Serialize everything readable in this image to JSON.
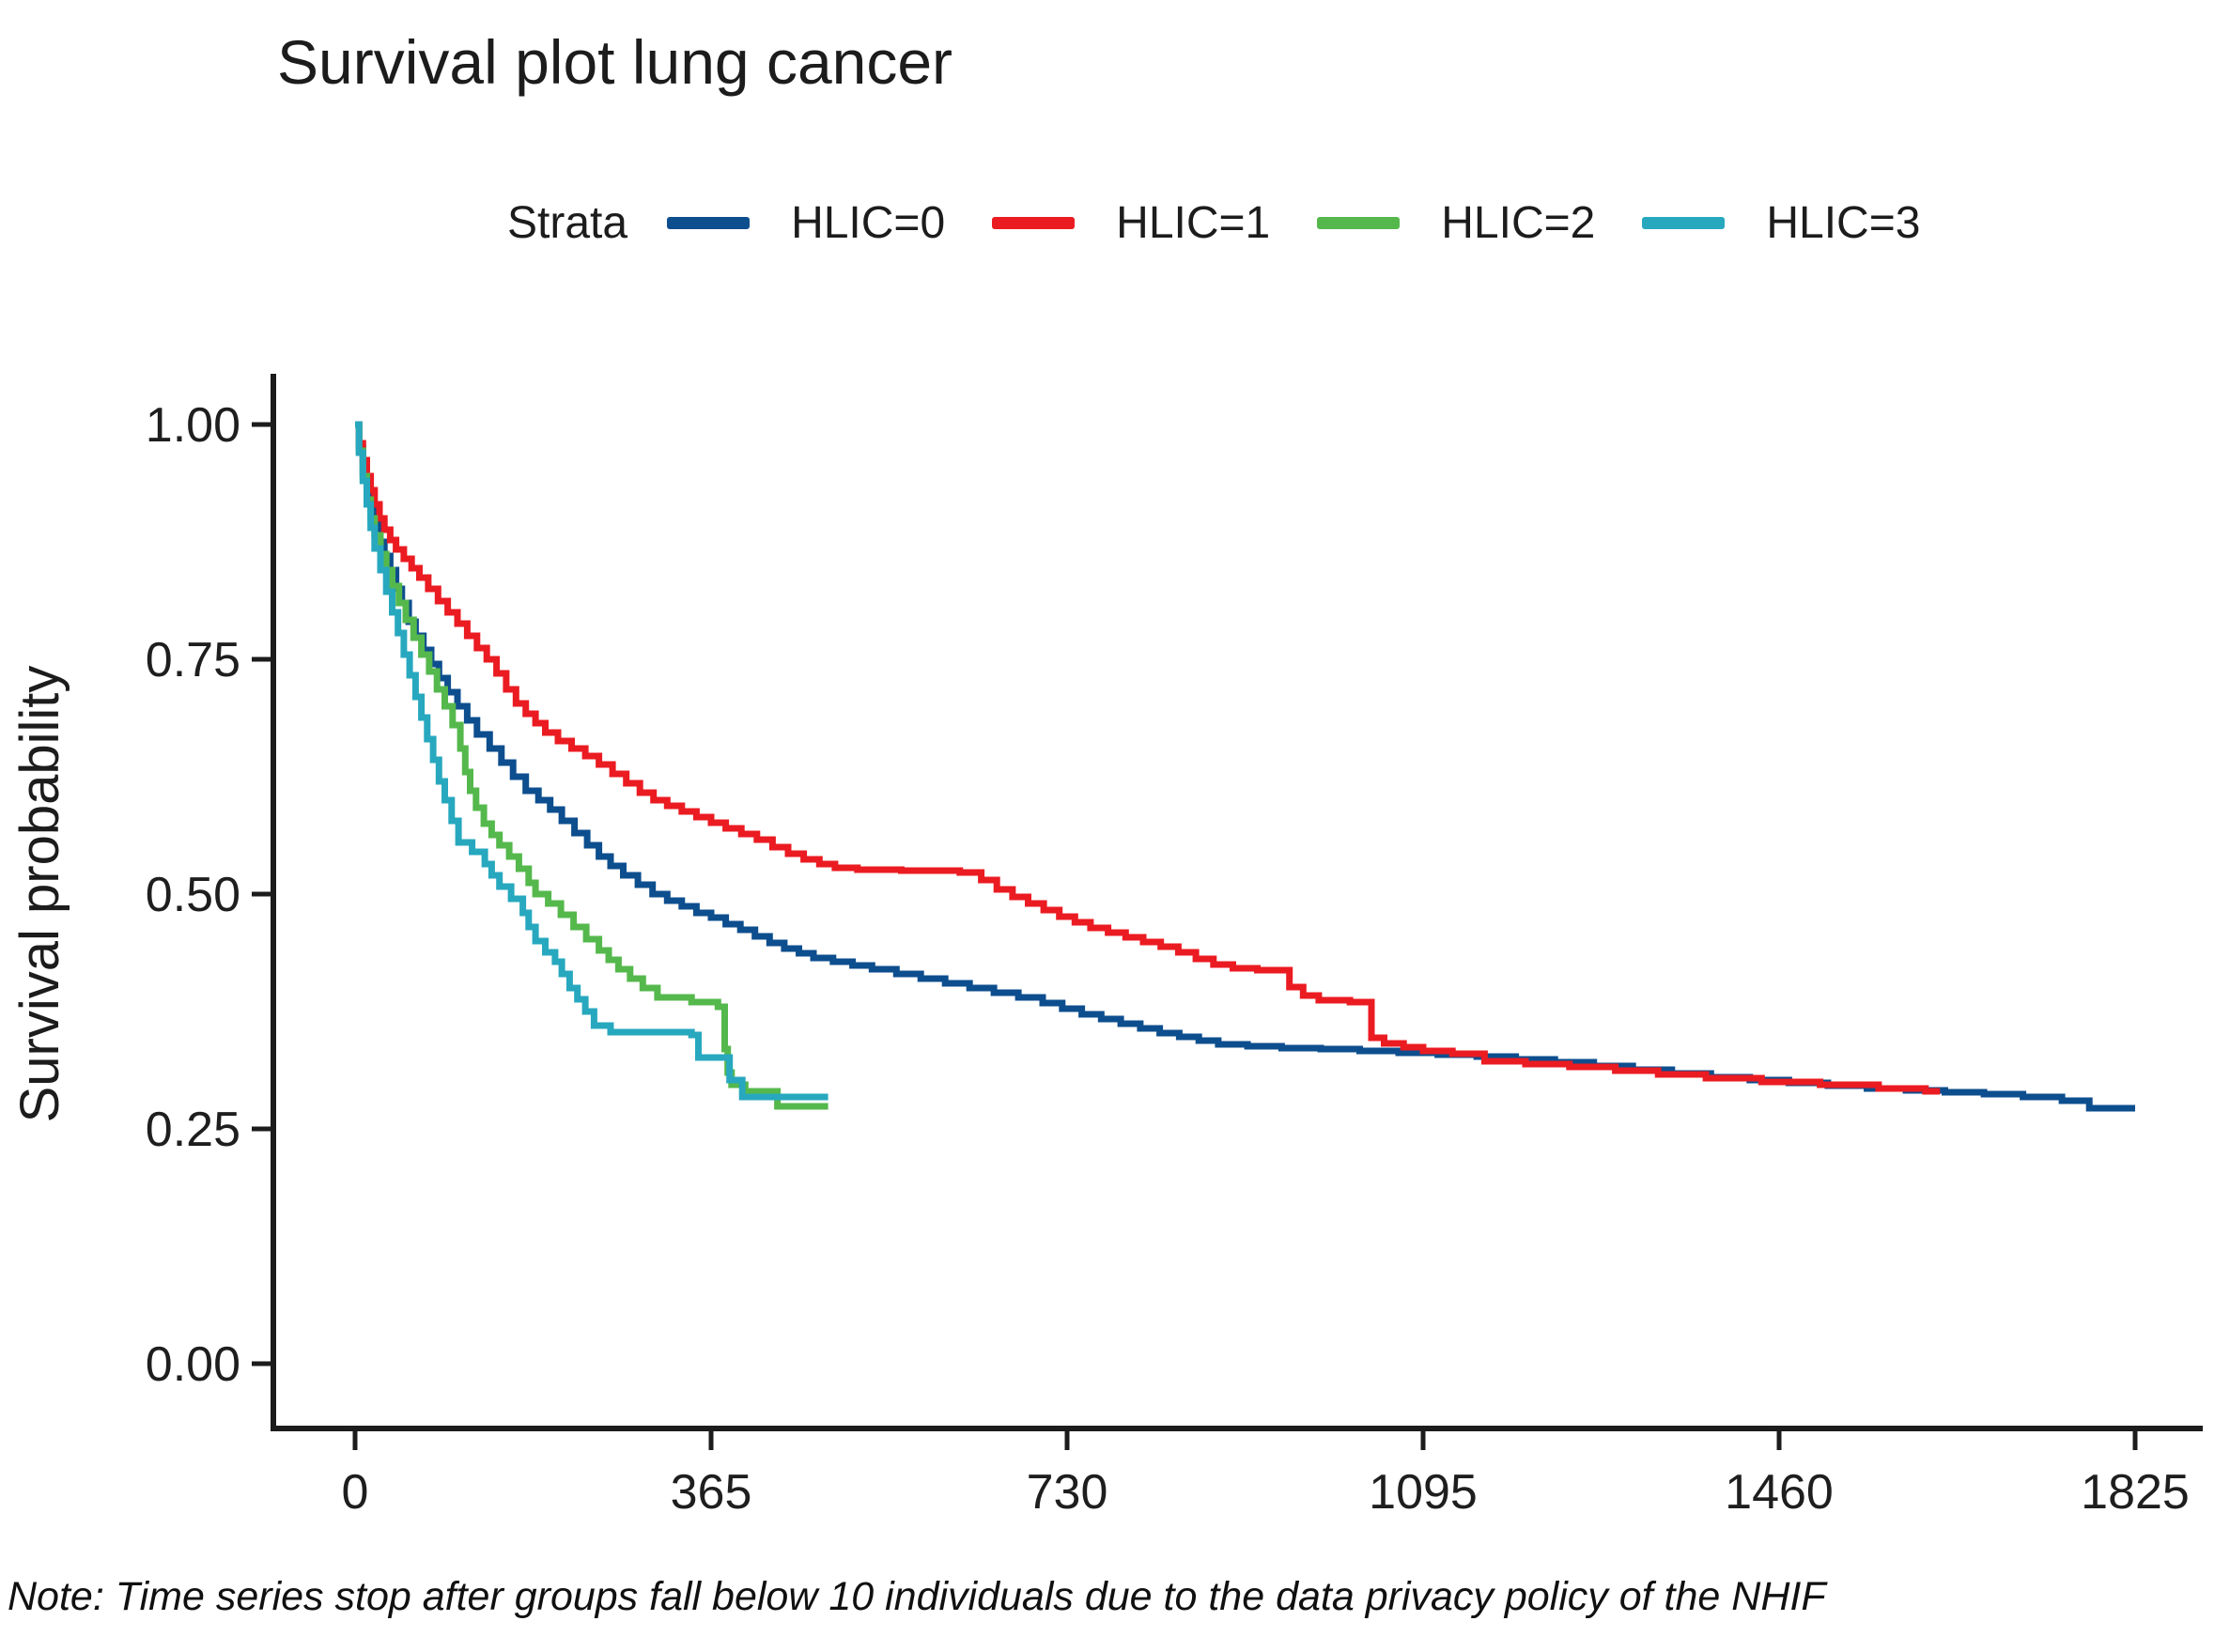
{
  "title": "Survival plot lung cancer",
  "note": "Note: Time series stop after groups fall below 10 individuals due to the data privacy policy of the NHIF",
  "legend": {
    "label": "Strata",
    "entries": [
      {
        "label": "HLIC=0",
        "color": "#0D4E8E"
      },
      {
        "label": "HLIC=1",
        "color": "#EB1B22"
      },
      {
        "label": "HLIC=2",
        "color": "#55B84C"
      },
      {
        "label": "HLIC=3",
        "color": "#27A8BF"
      }
    ]
  },
  "chart_data": {
    "type": "line",
    "subtype": "kaplan-meier-step",
    "title": "Survival plot lung cancer",
    "xlabel": "",
    "ylabel": "Survival probability",
    "xlim": [
      0,
      1825
    ],
    "ylim": [
      0.0,
      1.0
    ],
    "grid": false,
    "legend_position": "top",
    "x_ticks": [
      {
        "value": 0,
        "label": "0"
      },
      {
        "value": 365,
        "label": "365"
      },
      {
        "value": 730,
        "label": "730"
      },
      {
        "value": 1095,
        "label": "1095"
      },
      {
        "value": 1460,
        "label": "1460"
      },
      {
        "value": 1825,
        "label": "1825"
      }
    ],
    "y_ticks": [
      {
        "value": 1.0,
        "label": "1.00"
      },
      {
        "value": 0.75,
        "label": "0.75"
      },
      {
        "value": 0.5,
        "label": "0.50"
      },
      {
        "value": 0.25,
        "label": "0.25"
      },
      {
        "value": 0.0,
        "label": "0.00"
      }
    ],
    "series": [
      {
        "name": "HLIC=0",
        "color": "#0D4E8E",
        "points": [
          [
            0,
            1.0
          ],
          [
            4,
            0.975
          ],
          [
            8,
            0.95
          ],
          [
            12,
            0.93
          ],
          [
            16,
            0.91
          ],
          [
            20,
            0.895
          ],
          [
            25,
            0.875
          ],
          [
            30,
            0.86
          ],
          [
            36,
            0.845
          ],
          [
            42,
            0.825
          ],
          [
            48,
            0.81
          ],
          [
            55,
            0.79
          ],
          [
            62,
            0.775
          ],
          [
            70,
            0.76
          ],
          [
            78,
            0.745
          ],
          [
            86,
            0.73
          ],
          [
            95,
            0.715
          ],
          [
            105,
            0.7
          ],
          [
            115,
            0.685
          ],
          [
            125,
            0.67
          ],
          [
            138,
            0.655
          ],
          [
            150,
            0.64
          ],
          [
            162,
            0.625
          ],
          [
            175,
            0.61
          ],
          [
            188,
            0.6
          ],
          [
            200,
            0.59
          ],
          [
            212,
            0.578
          ],
          [
            225,
            0.565
          ],
          [
            238,
            0.552
          ],
          [
            250,
            0.54
          ],
          [
            262,
            0.53
          ],
          [
            275,
            0.52
          ],
          [
            290,
            0.51
          ],
          [
            305,
            0.5
          ],
          [
            320,
            0.493
          ],
          [
            335,
            0.487
          ],
          [
            350,
            0.48
          ],
          [
            365,
            0.475
          ],
          [
            380,
            0.468
          ],
          [
            395,
            0.462
          ],
          [
            410,
            0.455
          ],
          [
            425,
            0.448
          ],
          [
            440,
            0.442
          ],
          [
            455,
            0.437
          ],
          [
            470,
            0.432
          ],
          [
            490,
            0.428
          ],
          [
            510,
            0.424
          ],
          [
            530,
            0.42
          ],
          [
            555,
            0.415
          ],
          [
            580,
            0.41
          ],
          [
            605,
            0.405
          ],
          [
            630,
            0.4
          ],
          [
            655,
            0.395
          ],
          [
            680,
            0.39
          ],
          [
            705,
            0.384
          ],
          [
            725,
            0.378
          ],
          [
            745,
            0.372
          ],
          [
            765,
            0.367
          ],
          [
            785,
            0.362
          ],
          [
            805,
            0.357
          ],
          [
            825,
            0.352
          ],
          [
            845,
            0.348
          ],
          [
            865,
            0.344
          ],
          [
            885,
            0.34
          ],
          [
            915,
            0.338
          ],
          [
            950,
            0.336
          ],
          [
            990,
            0.335
          ],
          [
            1030,
            0.333
          ],
          [
            1070,
            0.331
          ],
          [
            1110,
            0.329
          ],
          [
            1150,
            0.327
          ],
          [
            1190,
            0.324
          ],
          [
            1230,
            0.321
          ],
          [
            1270,
            0.317
          ],
          [
            1310,
            0.313
          ],
          [
            1350,
            0.309
          ],
          [
            1390,
            0.305
          ],
          [
            1430,
            0.302
          ],
          [
            1470,
            0.299
          ],
          [
            1510,
            0.296
          ],
          [
            1550,
            0.293
          ],
          [
            1590,
            0.291
          ],
          [
            1630,
            0.289
          ],
          [
            1670,
            0.287
          ],
          [
            1710,
            0.284
          ],
          [
            1750,
            0.28
          ],
          [
            1778,
            0.272
          ],
          [
            1825,
            0.272
          ]
        ]
      },
      {
        "name": "HLIC=1",
        "color": "#EB1B22",
        "points": [
          [
            0,
            1.0
          ],
          [
            4,
            0.98
          ],
          [
            8,
            0.962
          ],
          [
            12,
            0.945
          ],
          [
            16,
            0.93
          ],
          [
            20,
            0.915
          ],
          [
            25,
            0.9
          ],
          [
            30,
            0.888
          ],
          [
            36,
            0.877
          ],
          [
            42,
            0.867
          ],
          [
            50,
            0.857
          ],
          [
            58,
            0.847
          ],
          [
            66,
            0.837
          ],
          [
            75,
            0.825
          ],
          [
            85,
            0.812
          ],
          [
            95,
            0.8
          ],
          [
            105,
            0.788
          ],
          [
            115,
            0.775
          ],
          [
            125,
            0.762
          ],
          [
            135,
            0.75
          ],
          [
            145,
            0.735
          ],
          [
            155,
            0.718
          ],
          [
            165,
            0.703
          ],
          [
            175,
            0.692
          ],
          [
            185,
            0.682
          ],
          [
            195,
            0.672
          ],
          [
            208,
            0.663
          ],
          [
            222,
            0.655
          ],
          [
            236,
            0.647
          ],
          [
            250,
            0.638
          ],
          [
            264,
            0.628
          ],
          [
            278,
            0.618
          ],
          [
            292,
            0.608
          ],
          [
            306,
            0.6
          ],
          [
            320,
            0.594
          ],
          [
            335,
            0.588
          ],
          [
            350,
            0.582
          ],
          [
            365,
            0.576
          ],
          [
            380,
            0.57
          ],
          [
            396,
            0.564
          ],
          [
            412,
            0.558
          ],
          [
            428,
            0.55
          ],
          [
            444,
            0.543
          ],
          [
            460,
            0.537
          ],
          [
            476,
            0.532
          ],
          [
            492,
            0.528
          ],
          [
            515,
            0.526
          ],
          [
            560,
            0.525
          ],
          [
            620,
            0.523
          ],
          [
            642,
            0.515
          ],
          [
            658,
            0.505
          ],
          [
            674,
            0.497
          ],
          [
            690,
            0.49
          ],
          [
            706,
            0.483
          ],
          [
            722,
            0.476
          ],
          [
            738,
            0.47
          ],
          [
            754,
            0.464
          ],
          [
            772,
            0.459
          ],
          [
            790,
            0.454
          ],
          [
            808,
            0.449
          ],
          [
            826,
            0.444
          ],
          [
            844,
            0.438
          ],
          [
            862,
            0.431
          ],
          [
            880,
            0.425
          ],
          [
            900,
            0.421
          ],
          [
            925,
            0.419
          ],
          [
            958,
            0.401
          ],
          [
            972,
            0.392
          ],
          [
            988,
            0.387
          ],
          [
            1020,
            0.385
          ],
          [
            1042,
            0.347
          ],
          [
            1055,
            0.341
          ],
          [
            1075,
            0.337
          ],
          [
            1095,
            0.333
          ],
          [
            1125,
            0.33
          ],
          [
            1158,
            0.322
          ],
          [
            1200,
            0.319
          ],
          [
            1245,
            0.316
          ],
          [
            1292,
            0.312
          ],
          [
            1336,
            0.308
          ],
          [
            1385,
            0.304
          ],
          [
            1442,
            0.3
          ],
          [
            1502,
            0.297
          ],
          [
            1562,
            0.293
          ],
          [
            1610,
            0.29
          ],
          [
            1625,
            0.29
          ]
        ]
      },
      {
        "name": "HLIC=2",
        "color": "#55B84C",
        "points": [
          [
            0,
            1.0
          ],
          [
            4,
            0.972
          ],
          [
            8,
            0.945
          ],
          [
            12,
            0.92
          ],
          [
            16,
            0.9
          ],
          [
            20,
            0.882
          ],
          [
            26,
            0.862
          ],
          [
            32,
            0.845
          ],
          [
            38,
            0.828
          ],
          [
            45,
            0.81
          ],
          [
            52,
            0.792
          ],
          [
            60,
            0.773
          ],
          [
            68,
            0.755
          ],
          [
            76,
            0.737
          ],
          [
            84,
            0.718
          ],
          [
            92,
            0.7
          ],
          [
            100,
            0.68
          ],
          [
            108,
            0.655
          ],
          [
            113,
            0.63
          ],
          [
            118,
            0.61
          ],
          [
            124,
            0.592
          ],
          [
            132,
            0.575
          ],
          [
            140,
            0.563
          ],
          [
            148,
            0.552
          ],
          [
            158,
            0.54
          ],
          [
            168,
            0.527
          ],
          [
            178,
            0.512
          ],
          [
            185,
            0.5
          ],
          [
            198,
            0.49
          ],
          [
            211,
            0.478
          ],
          [
            224,
            0.465
          ],
          [
            237,
            0.452
          ],
          [
            250,
            0.44
          ],
          [
            260,
            0.43
          ],
          [
            270,
            0.42
          ],
          [
            282,
            0.41
          ],
          [
            295,
            0.4
          ],
          [
            310,
            0.39
          ],
          [
            345,
            0.385
          ],
          [
            372,
            0.38
          ],
          [
            379,
            0.335
          ],
          [
            382,
            0.31
          ],
          [
            386,
            0.297
          ],
          [
            400,
            0.29
          ],
          [
            433,
            0.274
          ],
          [
            485,
            0.274
          ]
        ]
      },
      {
        "name": "HLIC=3",
        "color": "#27A8BF",
        "points": [
          [
            0,
            1.0
          ],
          [
            4,
            0.97
          ],
          [
            8,
            0.94
          ],
          [
            12,
            0.915
          ],
          [
            16,
            0.89
          ],
          [
            20,
            0.868
          ],
          [
            26,
            0.845
          ],
          [
            32,
            0.822
          ],
          [
            38,
            0.8
          ],
          [
            44,
            0.778
          ],
          [
            50,
            0.755
          ],
          [
            56,
            0.733
          ],
          [
            62,
            0.71
          ],
          [
            68,
            0.688
          ],
          [
            74,
            0.665
          ],
          [
            80,
            0.643
          ],
          [
            86,
            0.62
          ],
          [
            92,
            0.6
          ],
          [
            99,
            0.578
          ],
          [
            106,
            0.555
          ],
          [
            120,
            0.545
          ],
          [
            133,
            0.532
          ],
          [
            140,
            0.52
          ],
          [
            148,
            0.508
          ],
          [
            160,
            0.495
          ],
          [
            172,
            0.48
          ],
          [
            178,
            0.465
          ],
          [
            185,
            0.45
          ],
          [
            195,
            0.438
          ],
          [
            205,
            0.428
          ],
          [
            212,
            0.415
          ],
          [
            220,
            0.4
          ],
          [
            228,
            0.388
          ],
          [
            236,
            0.375
          ],
          [
            245,
            0.36
          ],
          [
            262,
            0.353
          ],
          [
            345,
            0.35
          ],
          [
            352,
            0.326
          ],
          [
            384,
            0.302
          ],
          [
            397,
            0.284
          ],
          [
            485,
            0.284
          ]
        ]
      }
    ]
  }
}
